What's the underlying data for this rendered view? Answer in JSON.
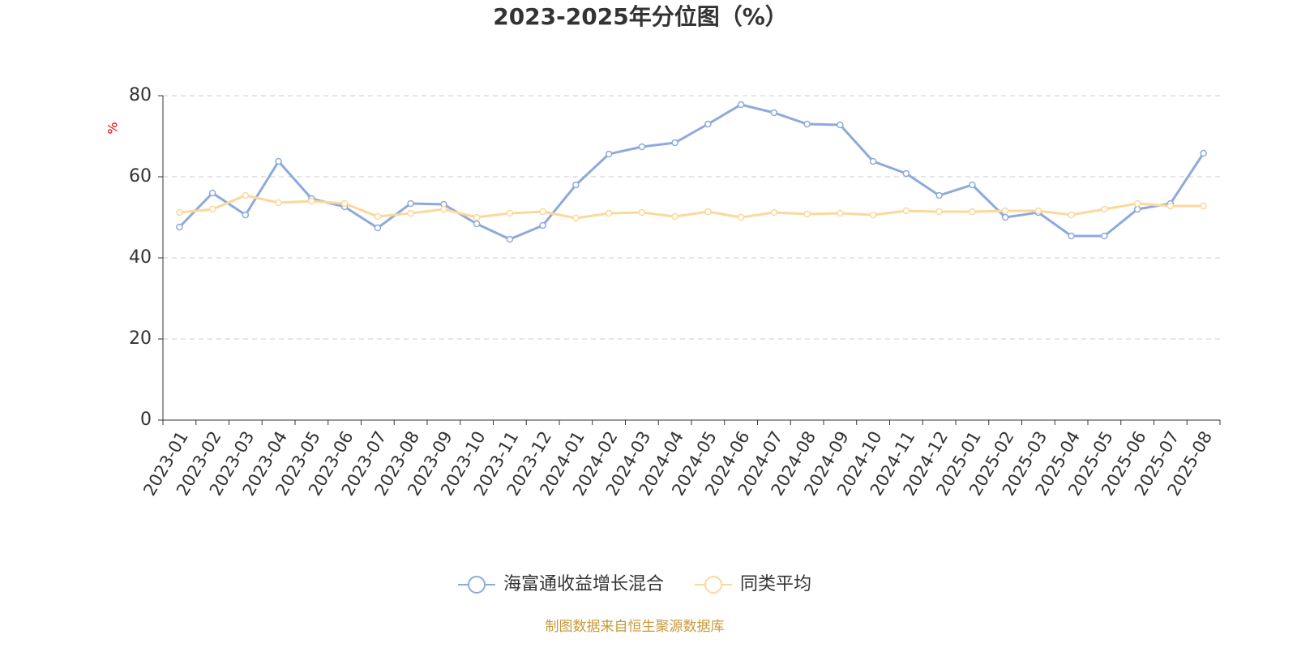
{
  "chart_data": {
    "type": "line",
    "title": "2023-2025年分位图（%）",
    "y_label": "%",
    "source": "制图数据来自恒生聚源数据库",
    "categories": [
      "2023-01",
      "2023-02",
      "2023-03",
      "2023-04",
      "2023-05",
      "2023-06",
      "2023-07",
      "2023-08",
      "2023-09",
      "2023-10",
      "2023-11",
      "2023-12",
      "2024-01",
      "2024-02",
      "2024-03",
      "2024-04",
      "2024-05",
      "2024-06",
      "2024-07",
      "2024-08",
      "2024-09",
      "2024-10",
      "2024-11",
      "2024-12",
      "2025-01",
      "2025-02",
      "2025-03",
      "2025-04",
      "2025-05",
      "2025-06",
      "2025-07",
      "2025-08"
    ],
    "series": [
      {
        "name": "海富通收益增长混合",
        "color": "#8eaadb",
        "values": [
          47.6,
          56,
          50.6,
          63.8,
          54.6,
          52.6,
          47.4,
          53.4,
          53.2,
          48.4,
          44.6,
          48,
          58,
          65.6,
          67.4,
          68.4,
          73,
          77.8,
          75.8,
          73,
          72.8,
          63.8,
          60.8,
          55.4,
          58,
          50,
          51.2,
          45.4,
          45.4,
          52,
          53.4,
          65.8
        ]
      },
      {
        "name": "同类平均",
        "color": "#fcd89a",
        "values": [
          51.2,
          52,
          55.4,
          53.6,
          54,
          53.4,
          50.2,
          51,
          52,
          50,
          51,
          51.4,
          49.8,
          51,
          51.2,
          50.2,
          51.4,
          50,
          51.2,
          50.8,
          51,
          50.6,
          51.6,
          51.4,
          51.4,
          51.6,
          51.6,
          50.6,
          52,
          53.4,
          52.8,
          52.8
        ]
      }
    ],
    "ylim": [
      0,
      80
    ],
    "yticks": [
      0,
      20,
      40,
      60,
      80
    ],
    "grid": true
  }
}
